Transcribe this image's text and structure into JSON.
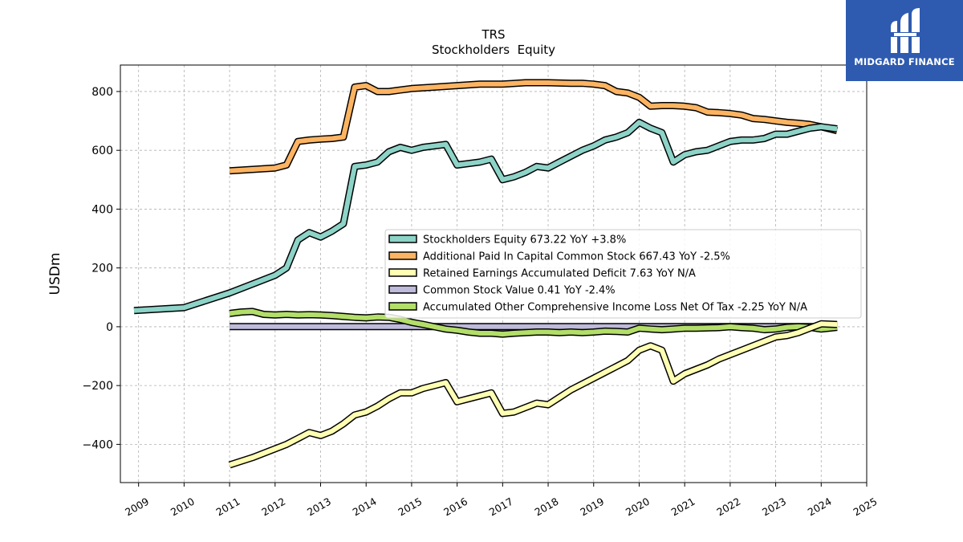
{
  "brand": {
    "name": "MIDGARD FINANCE",
    "logo_icon": "midgard-logo-icon",
    "color": "#2e5bb0"
  },
  "chart_data": {
    "type": "line",
    "title": "TRS",
    "subtitle": "Stockholders  Equity",
    "ylabel": "USDm",
    "xlabel": "",
    "xlim": [
      2008.6,
      2025.0
    ],
    "ylim": [
      -530,
      890
    ],
    "x_ticks": [
      "2009",
      "2010",
      "2011",
      "2012",
      "2013",
      "2014",
      "2015",
      "2016",
      "2017",
      "2018",
      "2019",
      "2020",
      "2021",
      "2022",
      "2023",
      "2024",
      "2025"
    ],
    "y_ticks": [
      -400,
      -200,
      0,
      200,
      400,
      600,
      800
    ],
    "y_tick_labels": [
      "−400",
      "−200",
      "0",
      "200",
      "400",
      "600",
      "800"
    ],
    "grid": true,
    "legend_position": "center-right",
    "series": [
      {
        "name": "Stockholders Equity",
        "legend": "Stockholders Equity  673.22 YoY +3.8%",
        "color": "#8dd3c7",
        "x": [
          2008.9,
          2010.0,
          2011.0,
          2011.5,
          2012.0,
          2012.25,
          2012.5,
          2012.75,
          2013.0,
          2013.25,
          2013.5,
          2013.75,
          2014.0,
          2014.25,
          2014.5,
          2014.75,
          2015.0,
          2015.25,
          2015.5,
          2015.75,
          2016.0,
          2016.25,
          2016.5,
          2016.75,
          2017.0,
          2017.25,
          2017.5,
          2017.75,
          2018.0,
          2018.25,
          2018.5,
          2018.75,
          2019.0,
          2019.25,
          2019.5,
          2019.75,
          2020.0,
          2020.25,
          2020.5,
          2020.75,
          2021.0,
          2021.25,
          2021.5,
          2021.75,
          2022.0,
          2022.25,
          2022.5,
          2022.75,
          2023.0,
          2023.25,
          2023.5,
          2023.75,
          2024.0,
          2024.35
        ],
        "values": [
          55,
          65,
          115,
          145,
          175,
          200,
          295,
          320,
          305,
          325,
          350,
          545,
          550,
          560,
          595,
          610,
          600,
          610,
          615,
          620,
          550,
          555,
          560,
          570,
          500,
          510,
          525,
          545,
          540,
          560,
          580,
          600,
          615,
          635,
          645,
          660,
          695,
          675,
          660,
          560,
          585,
          595,
          600,
          615,
          630,
          635,
          635,
          640,
          655,
          655,
          665,
          675,
          680,
          673
        ]
      },
      {
        "name": "Additional Paid In Capital Common Stock",
        "legend": "Additional Paid In Capital Common Stock  667.43 YoY -2.5%",
        "color": "#fdb462",
        "x": [
          2011.0,
          2011.5,
          2012.0,
          2012.25,
          2012.5,
          2012.75,
          2013.0,
          2013.25,
          2013.5,
          2013.75,
          2014.0,
          2014.25,
          2014.5,
          2014.75,
          2015.0,
          2015.5,
          2016.0,
          2016.5,
          2017.0,
          2017.5,
          2018.0,
          2018.5,
          2018.75,
          2019.0,
          2019.25,
          2019.5,
          2019.75,
          2020.0,
          2020.25,
          2020.5,
          2020.75,
          2021.0,
          2021.25,
          2021.5,
          2021.75,
          2022.0,
          2022.25,
          2022.5,
          2022.75,
          2023.0,
          2023.25,
          2023.5,
          2023.75,
          2024.0,
          2024.35
        ],
        "values": [
          530,
          535,
          540,
          550,
          630,
          635,
          638,
          640,
          645,
          815,
          820,
          800,
          800,
          805,
          810,
          815,
          820,
          825,
          825,
          830,
          830,
          828,
          828,
          825,
          820,
          800,
          795,
          780,
          750,
          752,
          752,
          750,
          745,
          730,
          728,
          725,
          720,
          708,
          705,
          700,
          695,
          692,
          688,
          680,
          667
        ]
      },
      {
        "name": "Retained Earnings Accumulated Deficit",
        "legend": "Retained Earnings Accumulated Deficit  7.63 YoY N/A",
        "color": "#ffffb3",
        "x": [
          2011.0,
          2011.5,
          2012.0,
          2012.25,
          2012.5,
          2012.75,
          2013.0,
          2013.25,
          2013.5,
          2013.75,
          2014.0,
          2014.25,
          2014.5,
          2014.75,
          2015.0,
          2015.25,
          2015.5,
          2015.75,
          2016.0,
          2016.25,
          2016.5,
          2016.75,
          2017.0,
          2017.25,
          2017.5,
          2017.75,
          2018.0,
          2018.25,
          2018.5,
          2018.75,
          2019.0,
          2019.25,
          2019.5,
          2019.75,
          2020.0,
          2020.25,
          2020.5,
          2020.75,
          2021.0,
          2021.25,
          2021.5,
          2021.75,
          2022.0,
          2022.25,
          2022.5,
          2022.75,
          2023.0,
          2023.25,
          2023.5,
          2023.75,
          2024.0,
          2024.35
        ],
        "values": [
          -470,
          -445,
          -415,
          -400,
          -380,
          -360,
          -370,
          -355,
          -330,
          -300,
          -290,
          -270,
          -245,
          -225,
          -225,
          -210,
          -200,
          -190,
          -255,
          -245,
          -235,
          -225,
          -295,
          -290,
          -275,
          -260,
          -265,
          -240,
          -215,
          -195,
          -175,
          -155,
          -135,
          -115,
          -80,
          -65,
          -80,
          -185,
          -160,
          -145,
          -130,
          -110,
          -95,
          -80,
          -65,
          -50,
          -35,
          -30,
          -20,
          -5,
          10,
          7.63
        ]
      },
      {
        "name": "Common Stock Value",
        "legend": "Common Stock Value  0.41 YoY -2.4%",
        "color": "#bebada",
        "x": [
          2011.0,
          2024.35
        ],
        "values": [
          0.42,
          0.41
        ]
      },
      {
        "name": "Accumulated Other Comprehensive Income Loss Net Of Tax",
        "legend": "Accumulated Other Comprehensive Income Loss Net Of Tax  -2.25 YoY N/A",
        "color": "#b3de69",
        "x": [
          2011.0,
          2011.25,
          2011.5,
          2011.75,
          2012.0,
          2012.25,
          2012.5,
          2012.75,
          2013.0,
          2013.25,
          2013.5,
          2013.75,
          2014.0,
          2014.25,
          2014.5,
          2014.75,
          2015.0,
          2015.25,
          2015.5,
          2015.75,
          2016.0,
          2016.25,
          2016.5,
          2016.75,
          2017.0,
          2017.25,
          2017.5,
          2017.75,
          2018.0,
          2018.25,
          2018.5,
          2018.75,
          2019.0,
          2019.25,
          2019.5,
          2019.75,
          2020.0,
          2020.25,
          2020.5,
          2020.75,
          2021.0,
          2021.25,
          2021.5,
          2021.75,
          2022.0,
          2022.25,
          2022.5,
          2022.75,
          2023.0,
          2023.25,
          2023.5,
          2023.75,
          2024.0,
          2024.35
        ],
        "values": [
          45,
          50,
          52,
          42,
          40,
          42,
          40,
          41,
          40,
          38,
          35,
          32,
          30,
          33,
          32,
          25,
          15,
          8,
          0,
          -8,
          -12,
          -18,
          -22,
          -22,
          -25,
          -22,
          -20,
          -18,
          -18,
          -20,
          -18,
          -20,
          -18,
          -15,
          -16,
          -18,
          -5,
          -8,
          -10,
          -8,
          -5,
          -5,
          -4,
          -3,
          0,
          -3,
          -5,
          -10,
          -8,
          -2,
          0,
          -2,
          -8,
          -2.25
        ]
      }
    ]
  }
}
